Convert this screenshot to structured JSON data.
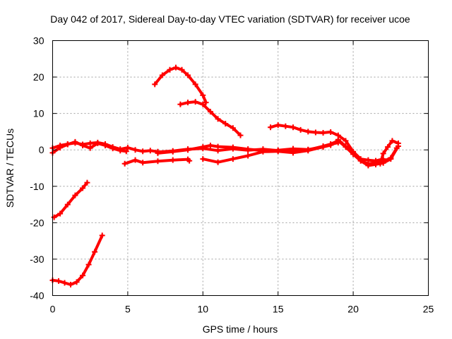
{
  "chart_data": {
    "type": "line",
    "title": "Day 042 of 2017, Sidereal Day-to-day VTEC variation (SDTVAR) for receiver ucoe",
    "xlabel": "GPS time / hours",
    "ylabel": "SDTVAR / TECUs",
    "xlim": [
      0,
      25
    ],
    "ylim": [
      -40,
      30
    ],
    "xticks": [
      0,
      5,
      10,
      15,
      20,
      25
    ],
    "yticks": [
      -40,
      -30,
      -20,
      -10,
      0,
      10,
      20,
      30
    ],
    "grid": true,
    "color": "#ff0000",
    "series": [
      {
        "name": "arc-01",
        "x": [
          0.0,
          0.5,
          1.0,
          1.5,
          2.0,
          2.5,
          3.0,
          3.5,
          4.0,
          4.5,
          5.0,
          5.5,
          6.0,
          6.5,
          7.0
        ],
        "y": [
          0.5,
          1.2,
          1.6,
          1.9,
          1.5,
          1.8,
          2.0,
          1.6,
          0.8,
          0.2,
          0.6,
          0.0,
          -0.4,
          -0.2,
          -0.5
        ]
      },
      {
        "name": "arc-02",
        "x": [
          0.0,
          0.5,
          1.0,
          1.5,
          2.0,
          2.5,
          3.0,
          3.5,
          4.0,
          4.5,
          4.9
        ],
        "y": [
          -0.8,
          0.6,
          1.5,
          2.2,
          1.2,
          0.5,
          1.8,
          1.2,
          0.4,
          -0.2,
          -0.4
        ]
      },
      {
        "name": "arc-03",
        "x": [
          7.0,
          8.0,
          9.0,
          10.0,
          11.0,
          12.0,
          13.0,
          14.0,
          15.0,
          16.0,
          17.0,
          18.0,
          18.5,
          19.0
        ],
        "y": [
          -0.6,
          -0.3,
          0.2,
          0.4,
          -0.2,
          0.3,
          -0.1,
          0.2,
          -0.2,
          -0.5,
          0.0,
          1.0,
          1.5,
          2.0
        ]
      },
      {
        "name": "arc-04",
        "x": [
          7.0,
          8.0,
          9.0,
          10.0,
          10.5,
          11.0,
          12.0,
          13.0,
          14.0,
          15.0,
          16.0,
          17.0,
          18.0,
          18.5
        ],
        "y": [
          -0.9,
          -0.5,
          0.0,
          0.8,
          1.2,
          0.9,
          0.7,
          0.2,
          -0.2,
          -0.1,
          0.3,
          0.1,
          0.8,
          1.3
        ]
      },
      {
        "name": "arc-05",
        "x": [
          4.8,
          5.5,
          6.0,
          7.0,
          8.0,
          9.0,
          9.1
        ],
        "y": [
          -3.8,
          -2.8,
          -3.5,
          -3.1,
          -2.8,
          -2.6,
          -3.0
        ]
      },
      {
        "name": "arc-06",
        "x": [
          10.0,
          11.0,
          12.0,
          13.0,
          14.0,
          15.0,
          16.0,
          17.0,
          18.0
        ],
        "y": [
          -2.5,
          -3.4,
          -2.5,
          -1.6,
          -0.5,
          -0.4,
          -0.8,
          -0.2,
          0.8
        ]
      },
      {
        "name": "arc-07",
        "x": [
          6.8,
          7.3,
          7.8,
          8.2,
          8.6,
          9.0,
          9.5,
          10.0,
          10.2
        ],
        "y": [
          18.0,
          20.5,
          22.0,
          22.6,
          22.0,
          20.5,
          18.0,
          15.0,
          13.0
        ]
      },
      {
        "name": "arc-08",
        "x": [
          8.5,
          9.0,
          9.5,
          10.0,
          10.5,
          11.0,
          11.5,
          12.0,
          12.5
        ],
        "y": [
          12.5,
          13.0,
          13.2,
          12.5,
          10.5,
          8.5,
          7.2,
          6.0,
          4.0
        ]
      },
      {
        "name": "arc-09",
        "x": [
          14.5,
          15.0,
          15.5,
          16.0,
          16.5,
          17.0,
          17.5,
          18.0,
          18.5,
          19.0,
          19.5,
          20.0,
          20.5,
          21.0,
          21.5,
          22.0
        ],
        "y": [
          6.2,
          6.8,
          6.5,
          6.2,
          5.5,
          5.0,
          4.8,
          4.7,
          4.9,
          4.0,
          2.5,
          -0.5,
          -2.5,
          -2.8,
          -3.0,
          -2.5
        ]
      },
      {
        "name": "arc-10",
        "x": [
          18.0,
          18.5,
          19.0,
          19.5,
          20.0,
          20.5,
          21.0,
          21.5,
          22.0,
          22.5,
          22.9
        ],
        "y": [
          1.0,
          1.6,
          2.5,
          0.8,
          -1.2,
          -3.0,
          -3.8,
          -3.5,
          -3.2,
          -2.2,
          0.5
        ]
      },
      {
        "name": "arc-11",
        "x": [
          19.0,
          19.5,
          20.0,
          20.5,
          21.0,
          21.5,
          22.0,
          22.5,
          23.0
        ],
        "y": [
          2.8,
          1.0,
          -1.0,
          -3.0,
          -4.3,
          -4.0,
          -3.6,
          -2.5,
          1.0
        ]
      },
      {
        "name": "arc-12",
        "x": [
          21.8,
          22.0,
          22.3,
          22.6,
          23.0
        ],
        "y": [
          -3.8,
          -1.0,
          0.8,
          2.5,
          1.8
        ]
      },
      {
        "name": "arc-13",
        "x": [
          0.1,
          0.5,
          1.0,
          1.5,
          2.0,
          2.3
        ],
        "y": [
          -18.5,
          -17.5,
          -15.0,
          -12.5,
          -10.5,
          -9.0
        ]
      },
      {
        "name": "arc-14",
        "x": [
          0.0,
          0.4,
          0.8,
          1.2,
          1.6,
          2.0,
          2.4,
          2.8,
          3.3
        ],
        "y": [
          -35.8,
          -36.0,
          -36.5,
          -37.0,
          -36.3,
          -34.5,
          -31.5,
          -28.0,
          -23.5
        ]
      }
    ]
  }
}
